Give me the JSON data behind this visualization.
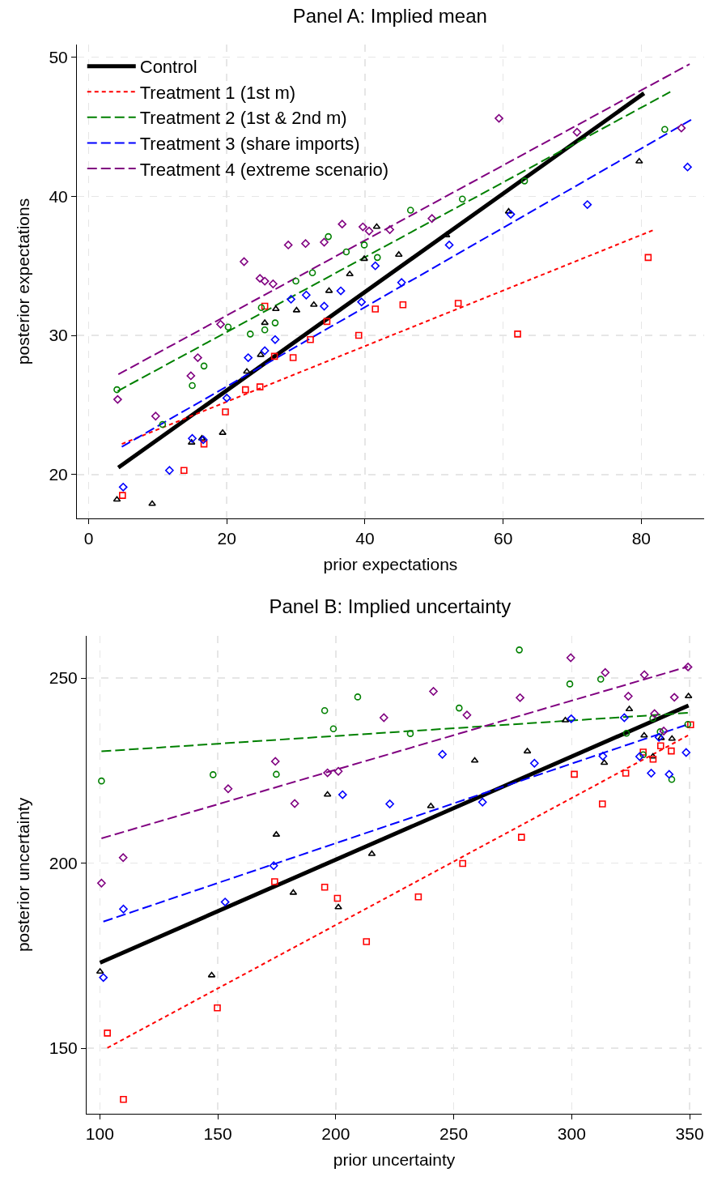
{
  "chart_data": [
    {
      "type": "scatter",
      "title": "Panel A: Implied mean",
      "xlabel": "prior expectations",
      "ylabel": "posterior expectations",
      "xlim": [
        -1.7,
        89.1
      ],
      "ylim": [
        16.85,
        50.9
      ],
      "xticks": [
        0,
        20,
        40,
        60,
        80
      ],
      "yticks": [
        20,
        30,
        40,
        50
      ],
      "grid": true,
      "legend": "top left",
      "series": [
        {
          "type": "scatter",
          "color": "#000000",
          "marker": "triangle",
          "x": [
            4.1,
            9.2,
            14.9,
            16.4,
            19.4,
            22.9,
            24.9,
            25.5,
            27.1,
            30.1,
            32.6,
            34.8,
            37.8,
            39.9,
            41.7,
            44.9,
            51.8,
            60.8,
            79.7
          ],
          "values": [
            18.2,
            17.9,
            22.3,
            22.6,
            23.0,
            27.4,
            28.6,
            30.9,
            31.9,
            31.8,
            32.2,
            33.2,
            34.4,
            35.5,
            37.8,
            35.8,
            37.2,
            38.9,
            42.5
          ]
        },
        {
          "type": "scatter",
          "color": "#ff0000",
          "marker": "square",
          "x": [
            4.9,
            13.8,
            16.7,
            19.8,
            22.7,
            24.8,
            26.9,
            25.5,
            29.6,
            32.1,
            34.5,
            39.1,
            41.5,
            45.5,
            53.5,
            62.1,
            81.0
          ],
          "values": [
            18.5,
            20.3,
            22.2,
            24.5,
            26.1,
            26.3,
            28.5,
            32.1,
            28.4,
            29.7,
            31.0,
            30.0,
            31.9,
            32.2,
            32.3,
            30.1,
            35.6
          ]
        },
        {
          "type": "scatter",
          "color": "#008000",
          "marker": "circle",
          "x": [
            4.1,
            10.7,
            15.0,
            16.7,
            20.2,
            23.4,
            25.0,
            25.5,
            27.0,
            30.0,
            32.4,
            34.7,
            37.3,
            39.9,
            41.8,
            46.6,
            54.1,
            63.1,
            83.4
          ],
          "values": [
            26.1,
            23.6,
            26.4,
            27.8,
            30.6,
            30.1,
            32.0,
            30.4,
            30.9,
            33.9,
            34.5,
            37.1,
            36.0,
            36.5,
            35.6,
            39.0,
            39.8,
            41.1,
            44.8
          ]
        },
        {
          "type": "scatter",
          "color": "#0000ff",
          "marker": "diamond",
          "x": [
            5.0,
            11.7,
            15.0,
            16.6,
            20.0,
            23.1,
            25.5,
            27.0,
            29.3,
            31.5,
            34.1,
            36.5,
            39.5,
            41.5,
            45.3,
            52.2,
            61.1,
            72.2,
            86.7
          ],
          "values": [
            19.1,
            20.3,
            22.6,
            22.5,
            25.5,
            28.4,
            28.9,
            29.7,
            32.6,
            32.9,
            32.1,
            33.2,
            32.4,
            35.0,
            33.8,
            36.5,
            38.7,
            39.4,
            42.1
          ]
        },
        {
          "type": "scatter",
          "color": "#800080",
          "marker": "diamond",
          "x": [
            4.2,
            9.7,
            14.8,
            15.8,
            19.1,
            22.5,
            24.8,
            25.5,
            26.7,
            28.9,
            31.4,
            34.1,
            36.7,
            39.7,
            40.6,
            43.6,
            49.7,
            59.4,
            70.7,
            85.8
          ],
          "values": [
            25.4,
            24.2,
            27.1,
            28.4,
            30.8,
            35.3,
            34.1,
            33.9,
            33.7,
            36.5,
            36.6,
            36.7,
            38.0,
            37.8,
            37.5,
            37.6,
            38.4,
            45.6,
            44.6,
            44.9
          ]
        },
        {
          "type": "line",
          "name": "Control",
          "color": "#000000",
          "line_style": "solid",
          "x": [
            4.3,
            80.4
          ],
          "values": [
            20.5,
            47.4
          ]
        },
        {
          "type": "line",
          "name": "Treatment 1 (1st m)",
          "color": "#ff0000",
          "line_style": "dotted",
          "x": [
            4.8,
            81.9
          ],
          "values": [
            22.2,
            37.6
          ]
        },
        {
          "type": "line",
          "name": "Treatment 2 (1st & 2nd m)",
          "color": "#008000",
          "line_style": "dashed",
          "x": [
            4.2,
            84.2
          ],
          "values": [
            26.0,
            47.5
          ]
        },
        {
          "type": "line",
          "name": "Treatment 3 (share imports)",
          "color": "#0000ff",
          "line_style": "dashed",
          "x": [
            4.8,
            87.6
          ],
          "values": [
            22.0,
            45.6
          ]
        },
        {
          "type": "line",
          "name": "Treatment 4 (extreme scenario)",
          "color": "#800080",
          "line_style": "dashed",
          "x": [
            4.3,
            87.0
          ],
          "values": [
            27.2,
            49.5
          ]
        }
      ]
    },
    {
      "type": "scatter",
      "title": "Panel B: Implied uncertainty",
      "xlabel": "prior uncertainty",
      "ylabel": "posterior uncertainty",
      "xlim": [
        94.4,
        355.1
      ],
      "ylim": [
        132.3,
        261.4
      ],
      "xticks": [
        100,
        150,
        200,
        250,
        300,
        350
      ],
      "yticks": [
        150,
        200,
        250
      ],
      "grid": true,
      "series": [
        {
          "type": "scatter",
          "color": "#000000",
          "marker": "triangle",
          "x": [
            100.1,
            147.4,
            174.8,
            182.0,
            196.5,
            201.1,
            215.3,
            240.3,
            258.9,
            281.2,
            297.3,
            313.8,
            324.4,
            330.7,
            334.4,
            337.9,
            342.5,
            349.5
          ],
          "values": [
            170.7,
            169.7,
            207.7,
            192.0,
            218.5,
            188.1,
            202.5,
            215.4,
            227.7,
            230.2,
            238.6,
            227.1,
            241.6,
            234.5,
            228.8,
            233.8,
            233.6,
            245.1
          ]
        },
        {
          "type": "scatter",
          "color": "#ff0000",
          "marker": "square",
          "x": [
            103.2,
            110.0,
            149.8,
            174.1,
            195.3,
            200.7,
            213.0,
            235.0,
            253.8,
            278.7,
            301.1,
            313.0,
            322.9,
            330.3,
            334.5,
            337.7,
            342.2,
            350.4
          ],
          "values": [
            154.1,
            136.2,
            160.9,
            195.0,
            193.5,
            190.5,
            178.8,
            190.9,
            199.9,
            207.0,
            224.0,
            216.0,
            224.3,
            230.0,
            228.1,
            231.7,
            230.3,
            237.4
          ]
        },
        {
          "type": "scatter",
          "color": "#008000",
          "marker": "circle",
          "x": [
            100.7,
            148.0,
            174.8,
            195.3,
            199.0,
            209.3,
            231.6,
            252.3,
            277.8,
            299.2,
            312.3,
            323.2,
            330.3,
            334.4,
            337.5,
            342.4,
            349.2
          ],
          "values": [
            222.2,
            223.9,
            224.0,
            241.2,
            236.3,
            244.9,
            235.0,
            241.9,
            257.6,
            248.4,
            249.7,
            235.1,
            229.3,
            239.1,
            235.5,
            222.6,
            237.5
          ]
        },
        {
          "type": "scatter",
          "color": "#0000ff",
          "marker": "diamond",
          "x": [
            101.5,
            110.0,
            153.1,
            173.7,
            202.9,
            222.9,
            245.2,
            262.2,
            284.2,
            299.8,
            313.2,
            322.3,
            328.8,
            333.7,
            337.0,
            341.3,
            348.5
          ],
          "values": [
            169.1,
            187.6,
            189.5,
            199.3,
            218.5,
            216.0,
            229.4,
            216.5,
            227.0,
            239.0,
            228.9,
            239.3,
            228.8,
            224.3,
            234.0,
            224.0,
            229.9
          ]
        },
        {
          "type": "scatter",
          "color": "#800080",
          "marker": "diamond",
          "x": [
            100.7,
            109.9,
            154.4,
            174.4,
            182.6,
            196.5,
            201.1,
            220.4,
            241.4,
            255.6,
            278.1,
            299.6,
            314.2,
            324.0,
            330.8,
            335.1,
            339.0,
            343.5,
            349.3
          ],
          "values": [
            194.6,
            201.5,
            220.1,
            227.5,
            216.1,
            224.4,
            224.8,
            239.3,
            246.4,
            240.0,
            244.7,
            255.5,
            251.5,
            245.1,
            250.9,
            240.4,
            235.7,
            244.8,
            253.0
          ]
        },
        {
          "type": "line",
          "color": "#000000",
          "line_style": "solid",
          "x": [
            100.1,
            349.5
          ],
          "values": [
            173.1,
            242.6
          ]
        },
        {
          "type": "line",
          "color": "#ff0000",
          "line_style": "dotted",
          "x": [
            103.2,
            349.3
          ],
          "values": [
            150.1,
            234.5
          ]
        },
        {
          "type": "line",
          "color": "#008000",
          "line_style": "dashed",
          "x": [
            100.7,
            349.3
          ],
          "values": [
            230.2,
            240.6
          ]
        },
        {
          "type": "line",
          "color": "#0000ff",
          "line_style": "dashed",
          "x": [
            101.5,
            349.3
          ],
          "values": [
            184.2,
            237.5
          ]
        },
        {
          "type": "line",
          "color": "#800080",
          "line_style": "dashed",
          "x": [
            100.7,
            349.3
          ],
          "values": [
            206.7,
            253.1
          ]
        }
      ]
    }
  ]
}
